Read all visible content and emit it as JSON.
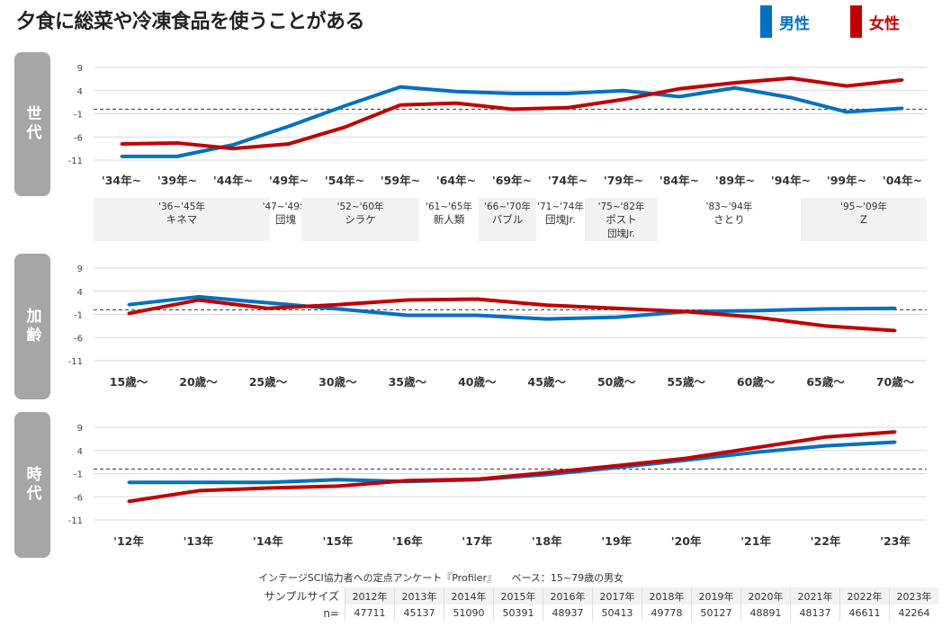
{
  "title": "夕食に総菜や冷凍食品を使うことがある",
  "legend": [
    {
      "name": "男性",
      "color": "#0070c0"
    },
    {
      "name": "女性",
      "color": "#c00000"
    }
  ],
  "chart_data": [
    {
      "type": "line",
      "panel_label": "世代",
      "ylim": [
        -11,
        9
      ],
      "yticks": [
        "9",
        "4",
        "-1",
        "-6",
        "-11"
      ],
      "reference_line": 0,
      "categories": [
        "'34年~",
        "'39年~",
        "'44年~",
        "'49年~",
        "'54年~",
        "'59年~",
        "'64年~",
        "'69年~",
        "'74年~",
        "'79年~",
        "'84年~",
        "'89年~",
        "'94年~",
        "'99年~",
        "'04年~"
      ],
      "series": [
        {
          "name": "男性",
          "values": [
            -10.2,
            -10.2,
            -7.7,
            -3.7,
            0.7,
            4.8,
            3.8,
            3.4,
            3.4,
            4.0,
            2.7,
            4.6,
            2.5,
            -0.6,
            0.2
          ]
        },
        {
          "name": "女性",
          "values": [
            -7.5,
            -7.3,
            -8.5,
            -7.5,
            -3.9,
            0.9,
            1.3,
            0.0,
            0.3,
            2.1,
            4.4,
            5.7,
            6.7,
            5.0,
            6.3
          ]
        }
      ],
      "generations": [
        {
          "years": "'36~'45年",
          "name": "キネマ"
        },
        {
          "years": "'47~'49年",
          "name": "団塊"
        },
        {
          "years": "'52~'60年",
          "name": "シラケ"
        },
        {
          "years": "'61~'65年",
          "name": "新人類"
        },
        {
          "years": "'66~'70年",
          "name": "バブル"
        },
        {
          "years": "'71~'74年",
          "name": "団塊Jr."
        },
        {
          "years": "'75~'82年",
          "name": "ポスト",
          "name2": "団塊Jr."
        },
        {
          "years": "'83~'94年",
          "name": "さとり"
        },
        {
          "years": "'95~'09年",
          "name": "Z"
        }
      ]
    },
    {
      "type": "line",
      "panel_label": "加齢",
      "ylim": [
        -11,
        9
      ],
      "yticks": [
        "9",
        "4",
        "-1",
        "-6",
        "-11"
      ],
      "reference_line": 0,
      "categories": [
        "15歳～",
        "20歳～",
        "25歳～",
        "30歳～",
        "35歳～",
        "40歳～",
        "45歳～",
        "50歳～",
        "55歳～",
        "60歳～",
        "65歳～",
        "70歳～"
      ],
      "series": [
        {
          "name": "男性",
          "values": [
            1.1,
            2.8,
            1.5,
            0.2,
            -1.2,
            -1.2,
            -2.0,
            -1.6,
            -0.4,
            -0.2,
            0.2,
            0.3
          ]
        },
        {
          "name": "女性",
          "values": [
            -0.8,
            2.1,
            0.3,
            1.1,
            2.1,
            2.3,
            1.0,
            0.3,
            -0.4,
            -1.6,
            -3.5,
            -4.5
          ]
        }
      ]
    },
    {
      "type": "line",
      "panel_label": "時代",
      "ylim": [
        -11,
        9
      ],
      "yticks": [
        "9",
        "4",
        "-1",
        "-6",
        "-11"
      ],
      "reference_line": 0,
      "categories": [
        "'12年",
        "'13年",
        "'14年",
        "'15年",
        "'16年",
        "'17年",
        "'18年",
        "'19年",
        "'20年",
        "'21年",
        "'22年",
        "'23年"
      ],
      "series": [
        {
          "name": "男性",
          "values": [
            -2.9,
            -2.9,
            -2.9,
            -2.3,
            -2.7,
            -2.3,
            -1.2,
            0.3,
            1.9,
            3.6,
            5.0,
            5.8
          ]
        },
        {
          "name": "女性",
          "values": [
            -7.0,
            -4.7,
            -4.1,
            -3.7,
            -2.5,
            -2.2,
            -0.8,
            0.7,
            2.3,
            4.6,
            6.9,
            8.0
          ]
        }
      ]
    }
  ],
  "footer": {
    "source": "インテージSCI協力者への定点アンケート『Profiler』　　ベース：15~79歳の男女",
    "sample_label": "サンプルサイズ",
    "n_label": "n=",
    "years": [
      "2012年",
      "2013年",
      "2014年",
      "2015年",
      "2016年",
      "2017年",
      "2018年",
      "2019年",
      "2020年",
      "2021年",
      "2022年",
      "2023年"
    ],
    "n": [
      "47711",
      "45137",
      "51090",
      "50391",
      "48937",
      "50413",
      "49778",
      "50127",
      "48891",
      "48137",
      "46611",
      "42264"
    ]
  }
}
